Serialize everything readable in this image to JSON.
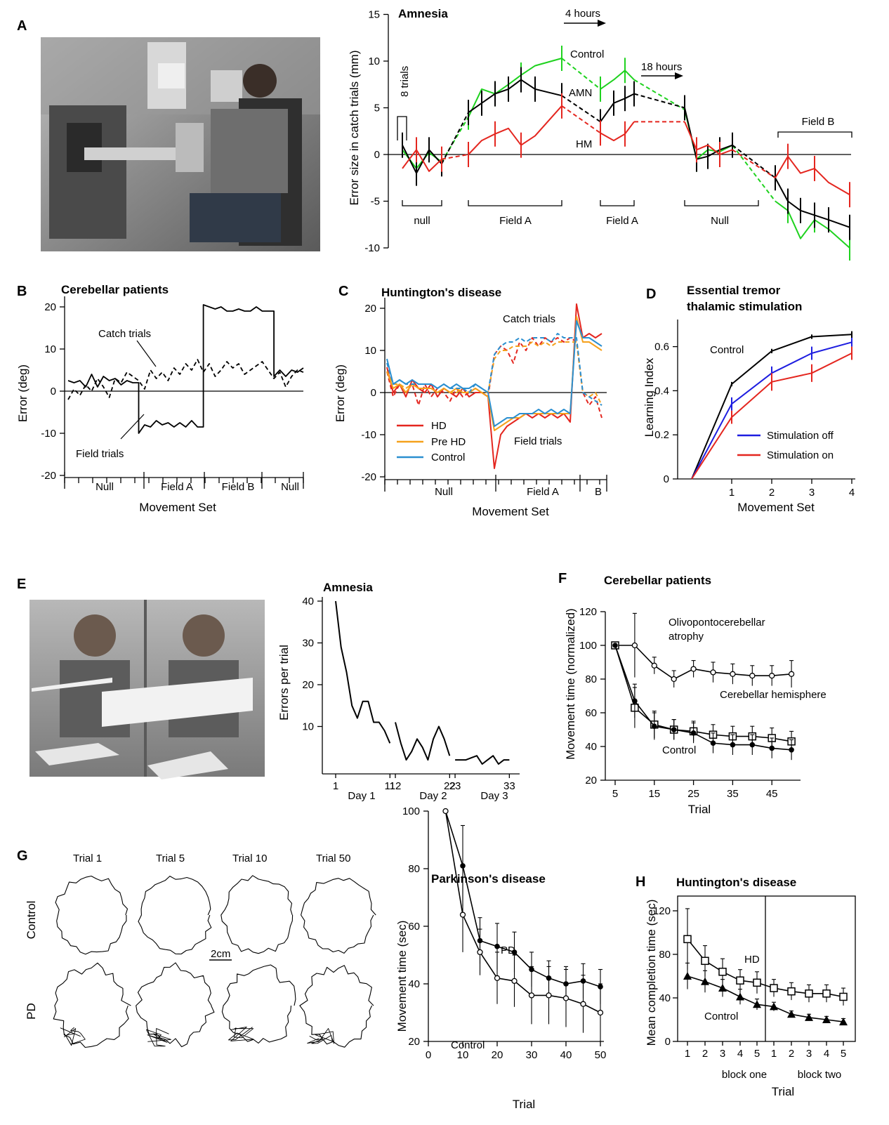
{
  "colors": {
    "black": "#000000",
    "green": "#1fd21f",
    "red": "#e4261f",
    "blue": "#1e1ee0",
    "orange": "#f5a11c",
    "cyan": "#2b8fd0"
  },
  "labels": {
    "A": "A",
    "B": "B",
    "C": "C",
    "D": "D",
    "E": "E",
    "F": "F",
    "G": "G",
    "H": "H"
  },
  "photos": {
    "A": "photo-robot-manipulandum",
    "E": "photo-mirror-drawing"
  },
  "chart_data": [
    {
      "id": "A",
      "type": "line",
      "title": "Amnesia",
      "xlabel": "",
      "ylabel": "Error size in catch trials (mm)",
      "ylim": [
        -10,
        15
      ],
      "yticks": [
        "15",
        "10",
        "5",
        "0",
        "-5",
        "-10"
      ],
      "blocks": [
        "null",
        "Field A",
        "Field A",
        "Null",
        "Field B"
      ],
      "annotations": {
        "trials": "8 trials",
        "gap1": "4 hours",
        "gap2": "18 hours"
      },
      "series": [
        {
          "name": "Control",
          "values": [
            0.5,
            -1.5,
            0.2,
            -0.8,
            null,
            4,
            7,
            6.5,
            7.5,
            8.5,
            9.5,
            10.3,
            null,
            7,
            8,
            9,
            8,
            null,
            4.8,
            -0.5,
            0.5,
            0.3,
            1.0,
            null,
            -5,
            -6,
            -9,
            -7,
            -8,
            -10
          ]
        },
        {
          "name": "AMN",
          "values": [
            1.0,
            -2.0,
            0.5,
            -1.0,
            null,
            4.5,
            5.5,
            6.5,
            7.0,
            8.0,
            7.0,
            6.3,
            null,
            3.5,
            5.5,
            6.0,
            6.5,
            null,
            5.0,
            -0.5,
            -0.2,
            0.5,
            1.0,
            null,
            -2.5,
            -5.0,
            -6.0,
            -6.5,
            -7.0,
            -7.8
          ]
        },
        {
          "name": "HM",
          "values": [
            -1.5,
            0.5,
            -1.8,
            -0.5,
            null,
            0.0,
            1.5,
            2.2,
            2.8,
            1.0,
            2.0,
            5.2,
            null,
            2.3,
            1.5,
            2.2,
            3.5,
            null,
            3.5,
            0.5,
            1.0,
            0.0,
            0.5,
            null,
            -2.5,
            -0.2,
            -2.0,
            -1.5,
            -3.0,
            -4.3
          ]
        }
      ]
    },
    {
      "id": "B",
      "type": "line",
      "title": "Cerebellar patients",
      "xlabel": "Movement Set",
      "ylabel": "Error (deg)",
      "ylim": [
        -20,
        20
      ],
      "yticks": [
        "20",
        "10",
        "0",
        "-10",
        "-20"
      ],
      "blocks": [
        "Null",
        "Field A",
        "Field B",
        "Null"
      ],
      "series": [
        {
          "name": "Field trials",
          "values": [
            2.5,
            2.0,
            2.5,
            1.0,
            4.0,
            1.0,
            3.5,
            2.5,
            3.0,
            1.5,
            2.5,
            2.0,
            -10.0,
            -8.0,
            -8.5,
            -7.0,
            -8.0,
            -7.5,
            -8.5,
            -7.5,
            -8.5,
            -7.0,
            -8.5,
            20.5,
            20.0,
            19.5,
            20.0,
            19.0,
            19.0,
            19.5,
            19.0,
            19.0,
            20.0,
            19.0,
            19.0,
            3.5,
            5.0,
            3.5,
            5.0,
            4.5,
            5.5
          ]
        },
        {
          "name": "Catch trials",
          "values": [
            -2.0,
            0.5,
            -1.0,
            1.5,
            0.0,
            3.0,
            1.0,
            -1.5,
            3.0,
            2.0,
            4.5,
            3.5,
            2.5,
            0.5,
            5.0,
            3.0,
            4.5,
            2.5,
            5.5,
            4.0,
            6.5,
            5.0,
            7.5,
            4.5,
            6.5,
            3.5,
            5.0,
            7.0,
            5.5,
            6.5,
            4.0,
            5.0,
            6.0,
            7.0,
            5.0,
            3.0,
            4.5,
            1.0,
            3.5,
            5.0,
            4.5
          ]
        }
      ]
    },
    {
      "id": "C",
      "type": "line",
      "title": "Huntington's disease",
      "xlabel": "Movement Set",
      "ylabel": "Error (deg)",
      "ylim": [
        -20,
        20
      ],
      "yticks": [
        "20",
        "10",
        "0",
        "-10",
        "-20"
      ],
      "blocks": [
        "Null",
        "Field A",
        "B"
      ],
      "labels": {
        "catch": "Catch trials",
        "field": "Field trials"
      },
      "series": [
        {
          "name": "HD",
          "field": [
            6,
            0,
            2,
            -1,
            3,
            1,
            0,
            2,
            -1,
            1,
            0,
            -1,
            1,
            -1,
            0,
            0,
            -1,
            -18,
            -10,
            -8,
            -7,
            -6,
            -5,
            -6,
            -5,
            -6,
            -5,
            -6,
            -5,
            -7,
            21,
            13,
            14,
            13,
            14
          ],
          "catch": [
            5,
            -1,
            2,
            0,
            2,
            -3,
            2,
            -1,
            1,
            0,
            -2,
            1,
            -1,
            0,
            1,
            0,
            -1,
            9,
            11,
            10,
            7,
            12,
            10,
            13,
            11,
            13,
            12,
            13,
            12,
            13,
            12,
            0,
            -3,
            -1,
            -6
          ]
        },
        {
          "name": "Pre HD",
          "field": [
            5,
            1,
            2,
            0,
            2,
            1,
            1,
            1,
            0,
            1,
            0,
            1,
            0,
            0,
            1,
            0,
            -1,
            -9,
            -8,
            -7,
            -6,
            -6,
            -5,
            -5,
            -5,
            -5,
            -5,
            -5,
            -5,
            -5,
            18,
            12,
            12,
            11,
            10
          ],
          "catch": [
            5,
            2,
            2,
            1,
            2,
            1,
            1,
            1,
            0,
            1,
            0,
            0,
            1,
            0,
            1,
            0,
            0,
            8,
            10,
            10,
            11,
            11,
            11,
            12,
            11,
            12,
            11,
            12,
            12,
            12,
            12,
            0,
            -1,
            0,
            -3
          ]
        },
        {
          "name": "Control",
          "field": [
            8,
            2,
            3,
            2,
            3,
            2,
            2,
            2,
            1,
            2,
            1,
            2,
            1,
            1,
            2,
            1,
            0,
            -8,
            -7,
            -6,
            -6,
            -5,
            -5,
            -5,
            -4,
            -5,
            -4,
            -5,
            -4,
            -5,
            17,
            13,
            13,
            12,
            11
          ],
          "catch": [
            7,
            2,
            3,
            2,
            2,
            2,
            2,
            2,
            1,
            2,
            1,
            1,
            1,
            0,
            2,
            1,
            0,
            9,
            11,
            12,
            12,
            13,
            12,
            13,
            13,
            13,
            12,
            14,
            13,
            13,
            13,
            0,
            -1,
            -2,
            -3
          ]
        }
      ]
    },
    {
      "id": "D",
      "type": "line",
      "title": "Essential tremor thalamic stimulation",
      "title_lines": [
        "Essential tremor",
        "thalamic stimulation"
      ],
      "xlabel": "Movement Set",
      "ylabel": "Learning Index",
      "x": [
        0,
        1,
        2,
        3,
        4
      ],
      "xticks": [
        "1",
        "2",
        "3",
        "4"
      ],
      "ylim": [
        0,
        0.7
      ],
      "yticks": [
        "0.6",
        "0.4",
        "0.2",
        "0"
      ],
      "series": [
        {
          "name": "Control",
          "values": [
            0.0,
            0.43,
            0.58,
            0.645,
            0.655
          ],
          "err": [
            0,
            0.01,
            0.01,
            0.01,
            0.015
          ]
        },
        {
          "name": "Stimulation off",
          "values": [
            0.0,
            0.34,
            0.48,
            0.57,
            0.62
          ],
          "err": [
            0,
            0.03,
            0.03,
            0.03,
            0.02
          ]
        },
        {
          "name": "Stimulation on",
          "values": [
            0.0,
            0.28,
            0.44,
            0.48,
            0.57
          ],
          "err": [
            0,
            0.03,
            0.04,
            0.04,
            0.03
          ]
        }
      ]
    },
    {
      "id": "E",
      "type": "line",
      "title": "Amnesia",
      "xlabel": "",
      "ylabel": "Errors per trial",
      "ylim": [
        0,
        40
      ],
      "yticks": [
        "40",
        "30",
        "20",
        "10"
      ],
      "xticks": [
        "1",
        "11",
        "12",
        "22",
        "23",
        "33"
      ],
      "days": [
        "Day 1",
        "Day 2",
        "Day 3"
      ],
      "segments": [
        {
          "x": [
            1,
            2,
            3,
            4,
            5,
            6,
            7,
            8,
            9,
            10,
            11
          ],
          "values": [
            40,
            29,
            23,
            15,
            12,
            16,
            16,
            11,
            11,
            9,
            6
          ]
        },
        {
          "x": [
            12,
            13,
            14,
            15,
            16,
            17,
            18,
            19,
            20,
            21,
            22
          ],
          "values": [
            11,
            6,
            2,
            4,
            7,
            5,
            2,
            7,
            10,
            7,
            3
          ]
        },
        {
          "x": [
            23,
            24,
            25,
            26,
            27,
            28,
            29,
            30,
            31,
            32,
            33
          ],
          "values": [
            2,
            2,
            2,
            2.5,
            3,
            1,
            2,
            3,
            1,
            2,
            2
          ]
        }
      ]
    },
    {
      "id": "F",
      "type": "line",
      "title": "Cerebellar patients",
      "xlabel": "Trial",
      "ylabel": "Movement time (normalized)",
      "x": [
        5,
        10,
        15,
        20,
        25,
        30,
        35,
        40,
        45,
        50
      ],
      "xticks": [
        "5",
        "15",
        "25",
        "35",
        "45"
      ],
      "ylim": [
        20,
        120
      ],
      "yticks": [
        "120",
        "100",
        "80",
        "60",
        "40",
        "20"
      ],
      "series": [
        {
          "name": "Olivopontocerebellar atrophy",
          "name_lines": [
            "Olivopontocerebellar",
            "atrophy"
          ],
          "marker": "circle-open",
          "values": [
            100,
            100,
            88,
            80,
            86,
            84,
            83,
            82,
            82,
            83
          ],
          "err": [
            0,
            19,
            5,
            5,
            5,
            6,
            6,
            6,
            6,
            8
          ]
        },
        {
          "name": "Cerebellar hemisphere",
          "marker": "square-open",
          "values": [
            100,
            63,
            53,
            50,
            49,
            47,
            46,
            46,
            45,
            43
          ],
          "err": [
            0,
            12,
            8,
            6,
            6,
            6,
            6,
            6,
            6,
            6
          ]
        },
        {
          "name": "Control",
          "marker": "circle-filled",
          "values": [
            100,
            67,
            52,
            50,
            48,
            42,
            41,
            41,
            39,
            38
          ],
          "err": [
            0,
            10,
            8,
            6,
            6,
            6,
            6,
            6,
            6,
            6
          ]
        }
      ]
    },
    {
      "id": "G",
      "type": "line",
      "title": "Parkinson's disease",
      "xlabel": "Trial",
      "ylabel": "Movement time (sec)",
      "x": [
        5,
        10,
        15,
        20,
        25,
        30,
        35,
        40,
        45,
        50
      ],
      "xticks": [
        "0",
        "10",
        "20",
        "30",
        "40",
        "50"
      ],
      "ylim": [
        20,
        100
      ],
      "yticks": [
        "100",
        "80",
        "60",
        "40",
        "20"
      ],
      "series": [
        {
          "name": "PD",
          "marker": "circle-filled",
          "values": [
            100,
            81,
            55,
            53,
            51,
            45,
            42,
            40,
            41,
            39
          ],
          "err": [
            0,
            14,
            8,
            8,
            7,
            6,
            6,
            6,
            6,
            6
          ]
        },
        {
          "name": "Control",
          "marker": "circle-open",
          "values": [
            100,
            64,
            51,
            42,
            41,
            36,
            36,
            35,
            33,
            30
          ],
          "err": [
            0,
            13,
            8,
            9,
            9,
            10,
            10,
            10,
            10,
            10
          ]
        }
      ],
      "drawings": {
        "columns": [
          "Trial 1",
          "Trial 5",
          "Trial 10",
          "Trial 50"
        ],
        "rows": [
          "Control",
          "PD"
        ],
        "scale": "2cm"
      }
    },
    {
      "id": "H",
      "type": "line",
      "title": "Huntington's disease",
      "xlabel": "Trial",
      "ylabel": "Mean completion time (sec)",
      "xticks": [
        "1",
        "2",
        "3",
        "4",
        "5",
        "1",
        "2",
        "3",
        "4",
        "5"
      ],
      "blocks": [
        "block one",
        "block two"
      ],
      "ylim": [
        0,
        140
      ],
      "yticks": [
        "120",
        "80",
        "40",
        "0"
      ],
      "series": [
        {
          "name": "HD",
          "marker": "square-open",
          "values": [
            94,
            74,
            64,
            56,
            54,
            49,
            46,
            44,
            44,
            41
          ],
          "err": [
            28,
            14,
            12,
            10,
            10,
            8,
            8,
            8,
            8,
            8
          ]
        },
        {
          "name": "Control",
          "marker": "triangle-filled",
          "values": [
            60,
            55,
            49,
            41,
            34,
            32,
            25,
            22,
            20,
            18
          ],
          "err": [
            12,
            10,
            8,
            7,
            5,
            4,
            3,
            3,
            3,
            3
          ]
        }
      ]
    }
  ]
}
